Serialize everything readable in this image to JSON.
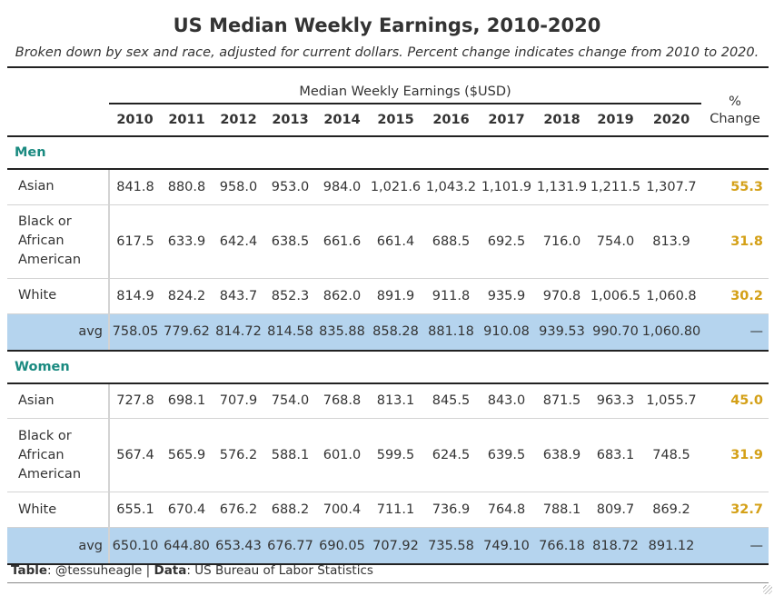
{
  "title": "US Median Weekly Earnings, 2010-2020",
  "subtitle": "Broken down by sex and race, adjusted for current dollars. Percent change indicates change from 2010 to 2020.",
  "spanner_label": "Median Weekly Earnings ($USD)",
  "pct_header": {
    "line1": "%",
    "line2": "Change"
  },
  "years": [
    "2010",
    "2011",
    "2012",
    "2013",
    "2014",
    "2015",
    "2016",
    "2017",
    "2018",
    "2019",
    "2020"
  ],
  "groups": [
    {
      "label": "Men",
      "rows": [
        {
          "lines": [
            "Asian"
          ],
          "values": [
            "841.8",
            "880.8",
            "958.0",
            "953.0",
            "984.0",
            "1,021.6",
            "1,043.2",
            "1,101.9",
            "1,131.9",
            "1,211.5",
            "1,307.7"
          ],
          "pct": "55.3"
        },
        {
          "lines": [
            "Black or",
            "African",
            "American"
          ],
          "values": [
            "617.5",
            "633.9",
            "642.4",
            "638.5",
            "661.6",
            "661.4",
            "688.5",
            "692.5",
            "716.0",
            "754.0",
            "813.9"
          ],
          "pct": "31.8"
        },
        {
          "lines": [
            "White"
          ],
          "values": [
            "814.9",
            "824.2",
            "843.7",
            "852.3",
            "862.0",
            "891.9",
            "911.8",
            "935.9",
            "970.8",
            "1,006.5",
            "1,060.8"
          ],
          "pct": "30.2"
        }
      ],
      "avg": {
        "label": "avg",
        "values": [
          "758.05",
          "779.62",
          "814.72",
          "814.58",
          "835.88",
          "858.28",
          "881.18",
          "910.08",
          "939.53",
          "990.70",
          "1,060.80"
        ],
        "pct": "—"
      }
    },
    {
      "label": "Women",
      "rows": [
        {
          "lines": [
            "Asian"
          ],
          "values": [
            "727.8",
            "698.1",
            "707.9",
            "754.0",
            "768.8",
            "813.1",
            "845.5",
            "843.0",
            "871.5",
            "963.3",
            "1,055.7"
          ],
          "pct": "45.0"
        },
        {
          "lines": [
            "Black or",
            "African",
            "American"
          ],
          "values": [
            "567.4",
            "565.9",
            "576.2",
            "588.1",
            "601.0",
            "599.5",
            "624.5",
            "639.5",
            "638.9",
            "683.1",
            "748.5"
          ],
          "pct": "31.9"
        },
        {
          "lines": [
            "White"
          ],
          "values": [
            "655.1",
            "670.4",
            "676.2",
            "688.2",
            "700.4",
            "711.1",
            "736.9",
            "764.8",
            "788.1",
            "809.7",
            "869.2"
          ],
          "pct": "32.7"
        }
      ],
      "avg": {
        "label": "avg",
        "values": [
          "650.10",
          "644.80",
          "653.43",
          "676.77",
          "690.05",
          "707.92",
          "735.58",
          "749.10",
          "766.18",
          "818.72",
          "891.12"
        ],
        "pct": "—"
      }
    }
  ],
  "footer": {
    "table_label": "Table",
    "table_value": ": @tessuheagle | ",
    "data_label": "Data",
    "data_value": ": US Bureau of Labor Statistics"
  },
  "colors": {
    "group_label": "#1a8a80",
    "pct_value": "#d4a017",
    "avg_row_bg": "#b5d4ee",
    "rule": "#222222"
  }
}
